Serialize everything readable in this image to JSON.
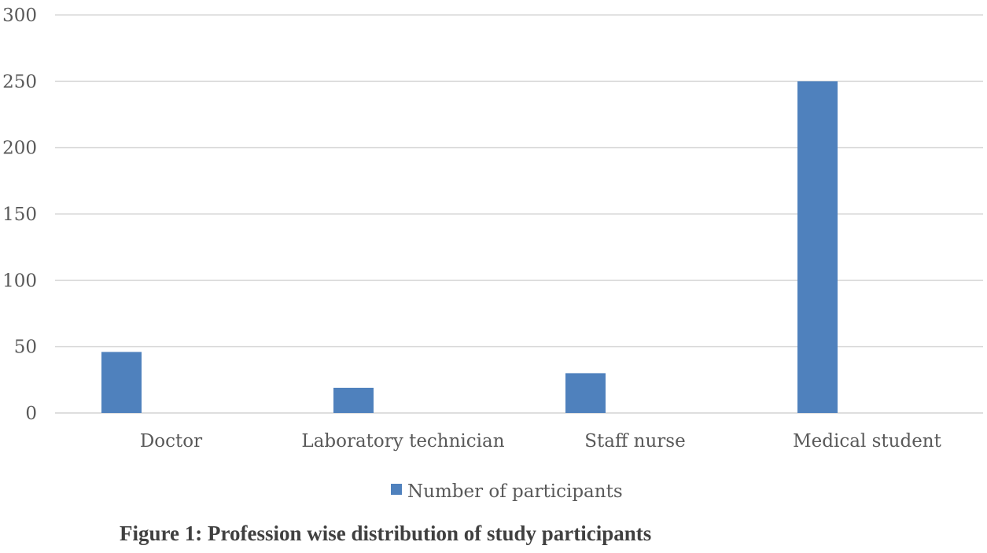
{
  "chart_data": {
    "type": "bar",
    "categories": [
      "Doctor",
      "Laboratory technician",
      "Staff nurse",
      "Medical student"
    ],
    "series": [
      {
        "name": "Number of participants",
        "values": [
          46,
          19,
          30,
          250
        ],
        "color": "#4f81bd"
      }
    ],
    "ylim": [
      0,
      300
    ],
    "yticks": [
      0,
      50,
      100,
      150,
      200,
      250,
      300
    ],
    "grid": true,
    "legend_position": "bottom",
    "caption": "Figure 1: Profession wise distribution of study participants"
  }
}
